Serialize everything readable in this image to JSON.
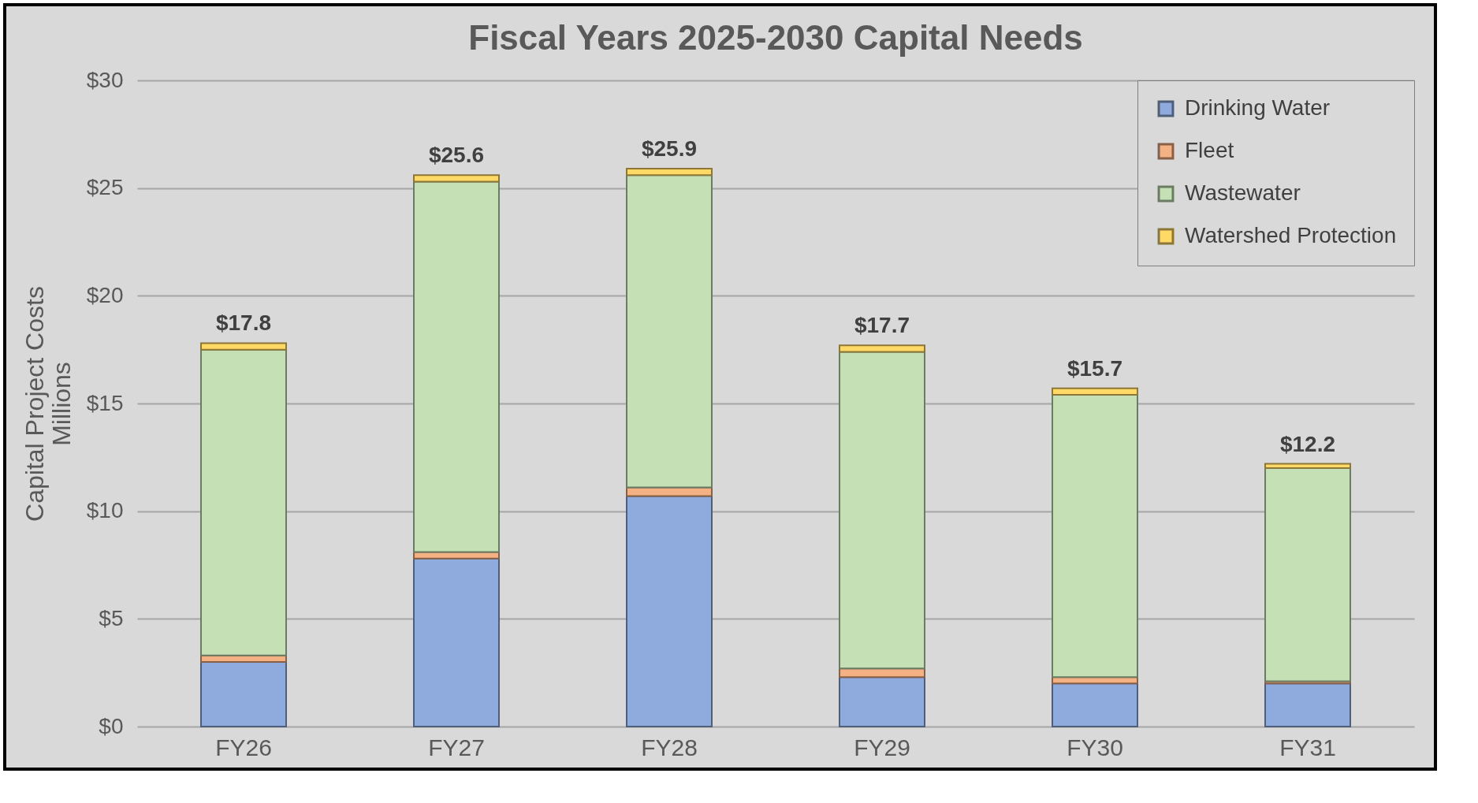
{
  "chart_data": {
    "type": "bar",
    "title": "Fiscal Years 2025-2030 Capital Needs",
    "ylabel": "Capital Project Costs\nMillions",
    "categories": [
      "FY26",
      "FY27",
      "FY28",
      "FY29",
      "FY30",
      "FY31"
    ],
    "series": [
      {
        "name": "Drinking Water",
        "color": "#8faadc",
        "values": [
          3.0,
          7.8,
          10.7,
          2.3,
          2.0,
          2.0
        ]
      },
      {
        "name": "Fleet",
        "color": "#f4b183",
        "values": [
          0.3,
          0.3,
          0.4,
          0.4,
          0.3,
          0.1
        ]
      },
      {
        "name": "Wastewater",
        "color": "#c5e0b4",
        "values": [
          14.2,
          17.2,
          14.5,
          14.7,
          13.1,
          9.9
        ]
      },
      {
        "name": "Watershed Protection",
        "color": "#ffd966",
        "values": [
          0.3,
          0.3,
          0.3,
          0.3,
          0.3,
          0.2
        ]
      }
    ],
    "stacked": true,
    "totals": [
      "$17.8",
      "$25.6",
      "$25.9",
      "$17.7",
      "$15.7",
      "$12.2"
    ],
    "ylim": [
      0,
      30
    ],
    "yticks": [
      {
        "value": 0,
        "label": "$0"
      },
      {
        "value": 5,
        "label": "$5"
      },
      {
        "value": 10,
        "label": "$10"
      },
      {
        "value": 15,
        "label": "$15"
      },
      {
        "value": 20,
        "label": "$20"
      },
      {
        "value": 25,
        "label": "$25"
      },
      {
        "value": 30,
        "label": "$30"
      }
    ],
    "grid": "y",
    "legend": "top right"
  }
}
